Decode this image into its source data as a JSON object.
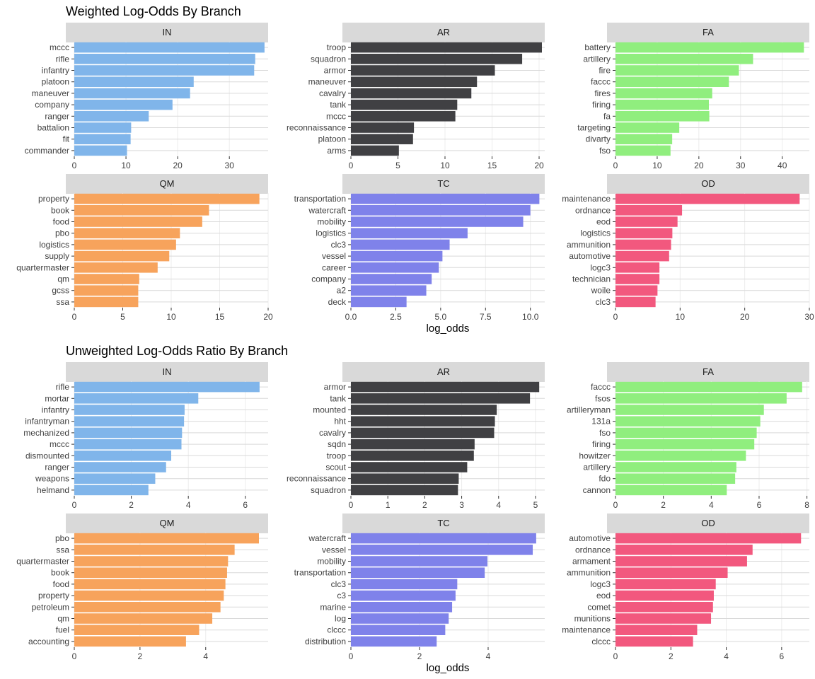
{
  "titles": [
    "Weighted Log-Odds By Branch",
    "Unweighted Log-Odds Ratio By Branch"
  ],
  "colors": {
    "IN": "#80b5ea",
    "AR": "#404043",
    "FA": "#90ee7e",
    "QM": "#f7a35c",
    "TC": "#7f82ea",
    "OD": "#f2587e"
  },
  "x_label": "log_odds",
  "chart_data": [
    {
      "type": "bar",
      "title": "Weighted Log-Odds By Branch",
      "xlabel": "log_odds",
      "panels": [
        {
          "name": "IN",
          "color": "#80b5ea",
          "categories": [
            "mccc",
            "rifle",
            "infantry",
            "platoon",
            "maneuver",
            "company",
            "ranger",
            "battalion",
            "fit",
            "commander"
          ],
          "values": [
            36.8,
            35.0,
            34.8,
            23.1,
            22.4,
            19.0,
            14.4,
            11.0,
            10.9,
            10.2
          ],
          "xlim": [
            0,
            37.5
          ],
          "ticks": [
            0,
            10,
            20,
            30
          ]
        },
        {
          "name": "AR",
          "color": "#404043",
          "categories": [
            "troop",
            "squadron",
            "armor",
            "maneuver",
            "cavalry",
            "tank",
            "mccc",
            "reconnaissance",
            "platoon",
            "arms"
          ],
          "values": [
            20.3,
            18.2,
            15.3,
            13.4,
            12.8,
            11.3,
            11.1,
            6.7,
            6.6,
            5.1
          ],
          "xlim": [
            0,
            20.6
          ],
          "ticks": [
            0,
            5,
            10,
            15,
            20
          ]
        },
        {
          "name": "FA",
          "color": "#90ee7e",
          "categories": [
            "battery",
            "artillery",
            "fire",
            "faccc",
            "fires",
            "firing",
            "fa",
            "targeting",
            "divarty",
            "fso"
          ],
          "values": [
            45.2,
            33.0,
            29.6,
            27.2,
            23.2,
            22.4,
            22.5,
            15.3,
            13.6,
            13.2
          ],
          "xlim": [
            0,
            46.5
          ],
          "ticks": [
            0,
            10,
            20,
            30,
            40
          ]
        },
        {
          "name": "QM",
          "color": "#f7a35c",
          "categories": [
            "property",
            "book",
            "food",
            "pbo",
            "logistics",
            "supply",
            "quartermaster",
            "qm",
            "gcss",
            "ssa"
          ],
          "values": [
            19.1,
            13.9,
            13.2,
            10.9,
            10.5,
            9.8,
            8.6,
            6.7,
            6.6,
            6.6
          ],
          "xlim": [
            0,
            20.0
          ],
          "ticks": [
            0,
            5,
            10,
            15,
            20
          ]
        },
        {
          "name": "TC",
          "color": "#7f82ea",
          "categories": [
            "transportation",
            "watercraft",
            "mobility",
            "logistics",
            "clc3",
            "vessel",
            "career",
            "company",
            "a2",
            "deck"
          ],
          "values": [
            10.5,
            10.0,
            9.6,
            6.5,
            5.5,
            5.1,
            4.9,
            4.5,
            4.2,
            3.1
          ],
          "xlim": [
            0,
            10.8
          ],
          "ticks": [
            0.0,
            2.5,
            5.0,
            7.5,
            10.0
          ]
        },
        {
          "name": "OD",
          "color": "#f2587e",
          "categories": [
            "maintenance",
            "ordnance",
            "eod",
            "logistics",
            "ammunition",
            "automotive",
            "logc3",
            "technician",
            "woile",
            "clc3"
          ],
          "values": [
            28.5,
            10.3,
            9.6,
            8.8,
            8.6,
            8.3,
            6.8,
            6.8,
            6.5,
            6.2
          ],
          "xlim": [
            0,
            30.0
          ],
          "ticks": [
            0,
            10,
            20,
            30
          ]
        }
      ]
    },
    {
      "type": "bar",
      "title": "Unweighted Log-Odds Ratio By Branch",
      "xlabel": "log_odds",
      "panels": [
        {
          "name": "IN",
          "color": "#80b5ea",
          "categories": [
            "rifle",
            "mortar",
            "infantry",
            "infantryman",
            "mechanized",
            "mccc",
            "dismounted",
            "ranger",
            "weapons",
            "helmand"
          ],
          "values": [
            6.5,
            4.35,
            3.87,
            3.85,
            3.78,
            3.76,
            3.4,
            3.22,
            2.84,
            2.6
          ],
          "xlim": [
            0,
            6.8
          ],
          "ticks": [
            0,
            2,
            4,
            6
          ]
        },
        {
          "name": "AR",
          "color": "#404043",
          "categories": [
            "armor",
            "tank",
            "mounted",
            "hht",
            "cavalry",
            "sqdn",
            "troop",
            "scout",
            "reconnaissance",
            "squadron"
          ],
          "values": [
            5.1,
            4.85,
            3.95,
            3.9,
            3.88,
            3.35,
            3.33,
            3.15,
            2.92,
            2.9
          ],
          "xlim": [
            0,
            5.25
          ],
          "ticks": [
            0,
            1,
            2,
            3,
            4,
            5
          ]
        },
        {
          "name": "FA",
          "color": "#90ee7e",
          "categories": [
            "faccc",
            "fsos",
            "artilleryman",
            "131a",
            "fso",
            "firing",
            "howitzer",
            "artillery",
            "fdo",
            "cannon"
          ],
          "values": [
            7.8,
            7.15,
            6.2,
            6.05,
            5.9,
            5.8,
            5.45,
            5.05,
            5.0,
            4.65
          ],
          "xlim": [
            0,
            8.1
          ],
          "ticks": [
            0,
            2,
            4,
            6,
            8
          ]
        },
        {
          "name": "QM",
          "color": "#f7a35c",
          "categories": [
            "pbo",
            "ssa",
            "quartermaster",
            "book",
            "food",
            "property",
            "petroleum",
            "qm",
            "fuel",
            "accounting"
          ],
          "values": [
            5.62,
            4.88,
            4.68,
            4.65,
            4.6,
            4.55,
            4.45,
            4.2,
            3.8,
            3.4
          ],
          "xlim": [
            0,
            5.9
          ],
          "ticks": [
            0,
            2,
            4
          ]
        },
        {
          "name": "TC",
          "color": "#7f82ea",
          "categories": [
            "watercraft",
            "vessel",
            "mobility",
            "transportation",
            "clc3",
            "c3",
            "marine",
            "log",
            "clccc",
            "distribution"
          ],
          "values": [
            5.4,
            5.3,
            3.98,
            3.9,
            3.1,
            3.05,
            2.95,
            2.85,
            2.75,
            2.5
          ],
          "xlim": [
            0,
            5.65
          ],
          "ticks": [
            0,
            2,
            4
          ]
        },
        {
          "name": "OD",
          "color": "#f2587e",
          "categories": [
            "automotive",
            "ordnance",
            "armament",
            "ammunition",
            "logc3",
            "eod",
            "comet",
            "munitions",
            "maintenance",
            "clccc"
          ],
          "values": [
            6.7,
            4.95,
            4.75,
            4.05,
            3.62,
            3.55,
            3.52,
            3.45,
            2.95,
            2.8
          ],
          "xlim": [
            0,
            7.0
          ],
          "ticks": [
            0,
            2,
            4,
            6
          ]
        }
      ]
    }
  ]
}
